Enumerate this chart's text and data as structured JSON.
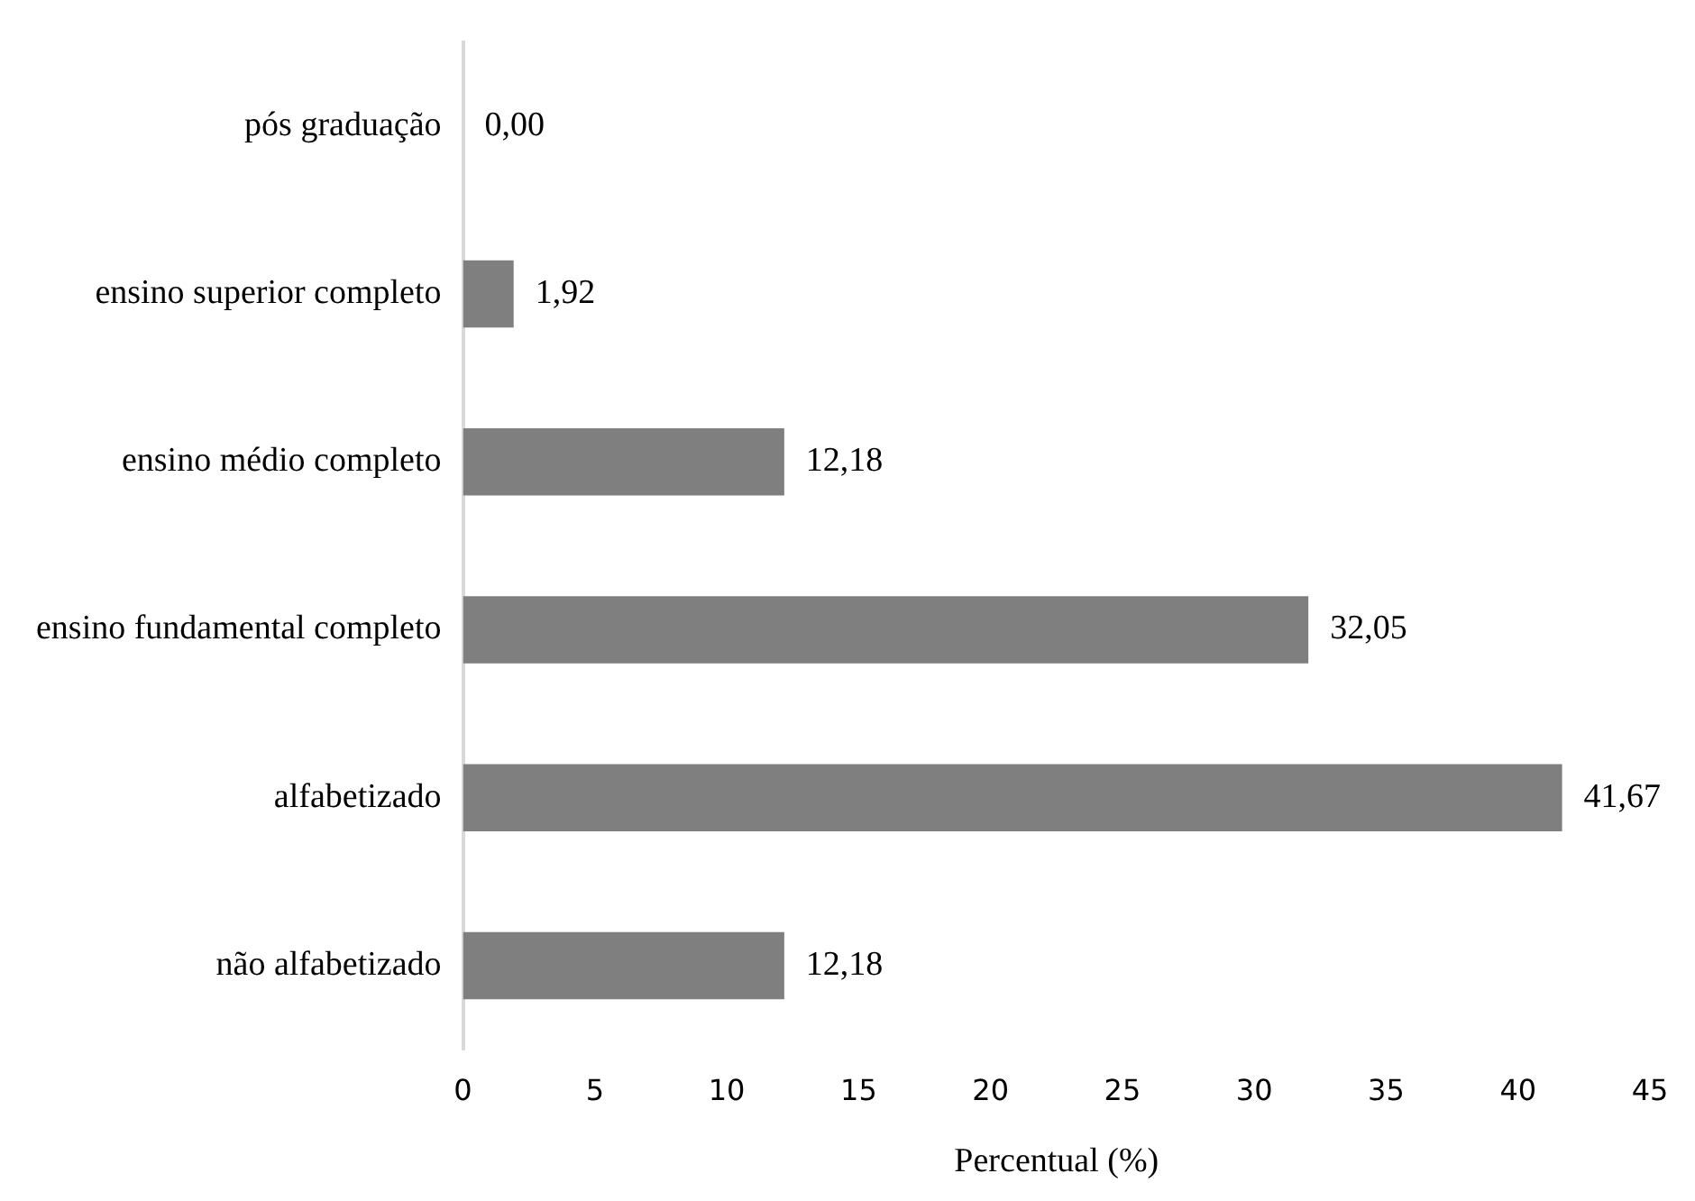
{
  "chart_data": {
    "type": "bar",
    "orientation": "horizontal",
    "xlabel": "Percentual (%)",
    "categories": [
      "pós graduação",
      "ensino superior completo",
      "ensino médio completo",
      "ensino fundamental completo",
      "alfabetizado",
      "não alfabetizado"
    ],
    "values": [
      0.0,
      1.92,
      12.18,
      32.05,
      41.67,
      12.18
    ],
    "value_labels": [
      "0,00",
      "1,92",
      "12,18",
      "32,05",
      "41,67",
      "12,18"
    ],
    "color": "#7f7f7f",
    "xlim": [
      0,
      45
    ],
    "xticks": [
      0,
      5,
      10,
      15,
      20,
      25,
      30,
      35,
      40,
      45
    ],
    "grid": false,
    "legend": false
  }
}
